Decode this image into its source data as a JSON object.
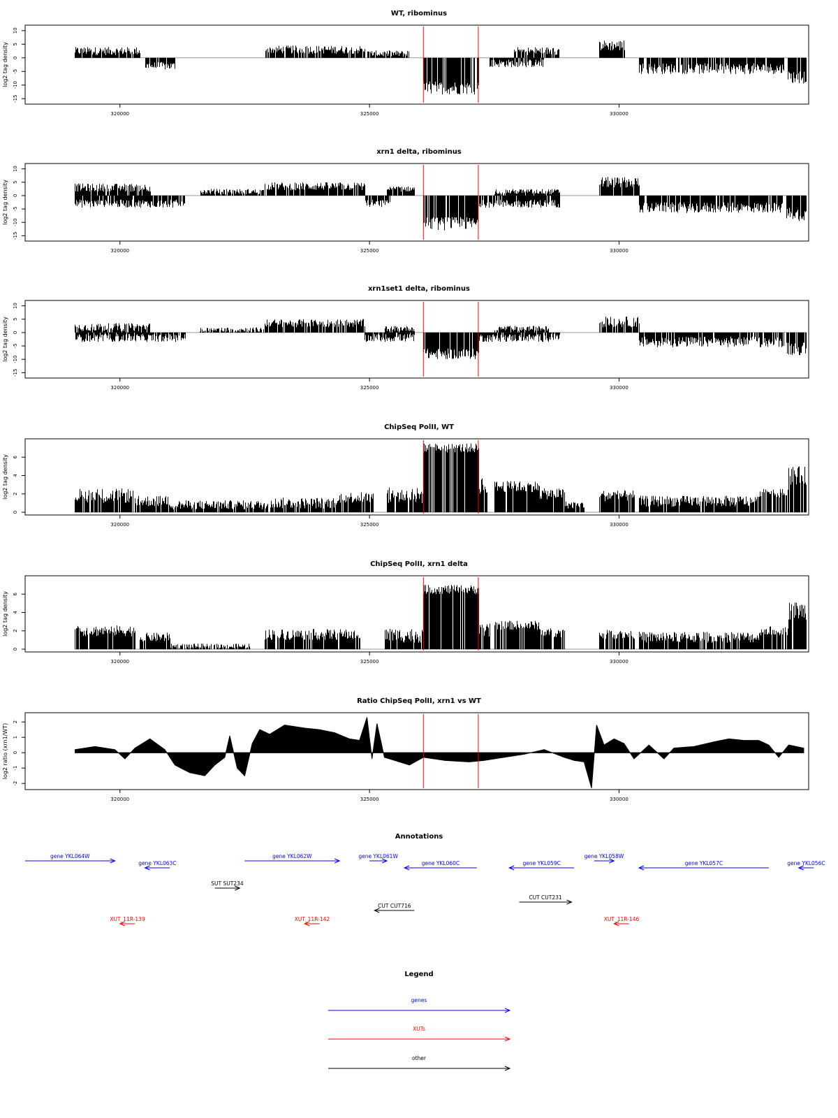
{
  "chart_data": [
    {
      "type": "bar",
      "title": "WT, ribominus",
      "ylabel": "log2 tag density",
      "xlim": [
        318100,
        333800
      ],
      "ylim": [
        -17,
        12
      ],
      "yticks": [
        10,
        5,
        0,
        -5,
        -10,
        -15
      ],
      "xticks": [
        320000,
        325000,
        330000
      ],
      "markers": [
        326080,
        327180
      ],
      "segments": [
        {
          "x0": 319100,
          "x1": 320400,
          "y": 2.5,
          "amp": 1.5
        },
        {
          "x0": 320500,
          "x1": 321100,
          "y": -3.0,
          "amp": 1.5
        },
        {
          "x0": 322900,
          "x1": 324900,
          "y": 3.0,
          "amp": 1.5
        },
        {
          "x0": 324950,
          "x1": 325800,
          "y": 1.5,
          "amp": 1.2
        },
        {
          "x0": 326080,
          "x1": 327180,
          "y": -11.0,
          "amp": 2.5
        },
        {
          "x0": 327400,
          "x1": 328500,
          "y": -2.0,
          "amp": 1.5
        },
        {
          "x0": 327900,
          "x1": 328800,
          "y": 2.5,
          "amp": 1.5
        },
        {
          "x0": 329600,
          "x1": 330100,
          "y": 4.5,
          "amp": 2.0
        },
        {
          "x0": 330400,
          "x1": 333300,
          "y": -4.0,
          "amp": 2.0
        },
        {
          "x0": 333350,
          "x1": 333750,
          "y": -7.0,
          "amp": 2.5
        }
      ]
    },
    {
      "type": "bar",
      "title": "xrn1 delta, ribominus",
      "ylabel": "log2 tag density",
      "xlim": [
        318100,
        333800
      ],
      "ylim": [
        -17,
        12
      ],
      "yticks": [
        10,
        5,
        0,
        -5,
        -10,
        -15
      ],
      "xticks": [
        320000,
        325000,
        330000
      ],
      "markers": [
        326080,
        327180
      ],
      "segments": [
        {
          "x0": 319100,
          "x1": 320600,
          "y": 3.0,
          "amp": 1.5
        },
        {
          "x0": 319100,
          "x1": 321300,
          "y": -3.0,
          "amp": 1.5
        },
        {
          "x0": 321600,
          "x1": 322900,
          "y": 1.5,
          "amp": 1.0
        },
        {
          "x0": 322900,
          "x1": 324900,
          "y": 3.5,
          "amp": 1.5
        },
        {
          "x0": 324900,
          "x1": 325400,
          "y": -3.0,
          "amp": 1.5
        },
        {
          "x0": 325350,
          "x1": 325900,
          "y": 2.5,
          "amp": 1.0
        },
        {
          "x0": 326080,
          "x1": 327180,
          "y": -10.5,
          "amp": 2.5
        },
        {
          "x0": 327180,
          "x1": 328800,
          "y": -3.0,
          "amp": 1.5
        },
        {
          "x0": 327500,
          "x1": 328800,
          "y": 1.5,
          "amp": 1.0
        },
        {
          "x0": 329600,
          "x1": 330400,
          "y": 5.0,
          "amp": 2.0
        },
        {
          "x0": 330400,
          "x1": 333300,
          "y": -4.5,
          "amp": 2.0
        },
        {
          "x0": 333350,
          "x1": 333750,
          "y": -7.0,
          "amp": 2.5
        }
      ]
    },
    {
      "type": "bar",
      "title": "xrn1set1 delta, ribominus",
      "ylabel": "log2 tag density",
      "xlim": [
        318100,
        333800
      ],
      "ylim": [
        -17,
        12
      ],
      "yticks": [
        10,
        5,
        0,
        -5,
        -10,
        -15
      ],
      "xticks": [
        320000,
        325000,
        330000
      ],
      "markers": [
        326080,
        327180
      ],
      "segments": [
        {
          "x0": 319100,
          "x1": 320600,
          "y": 2.0,
          "amp": 1.5
        },
        {
          "x0": 319100,
          "x1": 321300,
          "y": -2.0,
          "amp": 1.5
        },
        {
          "x0": 321600,
          "x1": 322900,
          "y": 1.0,
          "amp": 1.0
        },
        {
          "x0": 322900,
          "x1": 324900,
          "y": 3.5,
          "amp": 1.5
        },
        {
          "x0": 324900,
          "x1": 325900,
          "y": -2.0,
          "amp": 1.5
        },
        {
          "x0": 325300,
          "x1": 325900,
          "y": 1.5,
          "amp": 1.0
        },
        {
          "x0": 326080,
          "x1": 327180,
          "y": -8.0,
          "amp": 2.0
        },
        {
          "x0": 327200,
          "x1": 328800,
          "y": -2.0,
          "amp": 1.5
        },
        {
          "x0": 327500,
          "x1": 328600,
          "y": 1.5,
          "amp": 1.0
        },
        {
          "x0": 329600,
          "x1": 330400,
          "y": 4.0,
          "amp": 2.0
        },
        {
          "x0": 330400,
          "x1": 333300,
          "y": -3.5,
          "amp": 2.0
        },
        {
          "x0": 333350,
          "x1": 333750,
          "y": -6.0,
          "amp": 2.5
        }
      ]
    },
    {
      "type": "bar",
      "title": "ChipSeq PolII, WT",
      "ylabel": "log2 tag density",
      "xlim": [
        318100,
        333800
      ],
      "ylim": [
        -0.3,
        8
      ],
      "yticks": [
        0,
        2,
        4,
        6
      ],
      "xticks": [
        320000,
        325000,
        330000
      ],
      "markers": [
        326080,
        327180
      ],
      "segments": [
        {
          "x0": 319100,
          "x1": 320250,
          "y": 1.8,
          "amp": 0.8
        },
        {
          "x0": 320300,
          "x1": 321000,
          "y": 1.2,
          "amp": 0.6
        },
        {
          "x0": 321000,
          "x1": 323000,
          "y": 0.8,
          "amp": 0.5
        },
        {
          "x0": 323000,
          "x1": 324400,
          "y": 1.0,
          "amp": 0.6
        },
        {
          "x0": 324400,
          "x1": 325100,
          "y": 1.6,
          "amp": 0.6
        },
        {
          "x0": 325350,
          "x1": 326080,
          "y": 1.8,
          "amp": 0.9
        },
        {
          "x0": 326080,
          "x1": 327180,
          "y": 7.0,
          "amp": 0.5
        },
        {
          "x0": 327180,
          "x1": 327350,
          "y": 3.0,
          "amp": 1.0
        },
        {
          "x0": 327500,
          "x1": 328400,
          "y": 2.8,
          "amp": 0.6
        },
        {
          "x0": 328400,
          "x1": 328900,
          "y": 2.0,
          "amp": 0.6
        },
        {
          "x0": 328900,
          "x1": 329300,
          "y": 0.8,
          "amp": 0.4
        },
        {
          "x0": 329600,
          "x1": 330300,
          "y": 1.8,
          "amp": 0.6
        },
        {
          "x0": 330400,
          "x1": 332800,
          "y": 1.2,
          "amp": 0.6
        },
        {
          "x0": 332800,
          "x1": 333400,
          "y": 2.2,
          "amp": 0.6
        },
        {
          "x0": 333400,
          "x1": 333750,
          "y": 4.0,
          "amp": 1.0
        }
      ]
    },
    {
      "type": "bar",
      "title": "ChipSeq PolII, xrn1 delta",
      "ylabel": "log2 tag density",
      "xlim": [
        318100,
        333800
      ],
      "ylim": [
        -0.3,
        8
      ],
      "yticks": [
        0,
        2,
        4,
        6
      ],
      "xticks": [
        320000,
        325000,
        330000
      ],
      "markers": [
        326080,
        327180
      ],
      "segments": [
        {
          "x0": 319100,
          "x1": 320300,
          "y": 2.0,
          "amp": 0.6
        },
        {
          "x0": 320400,
          "x1": 321000,
          "y": 1.3,
          "amp": 0.5
        },
        {
          "x0": 321000,
          "x1": 322600,
          "y": 0.3,
          "amp": 0.3
        },
        {
          "x0": 322900,
          "x1": 324800,
          "y": 1.6,
          "amp": 0.6
        },
        {
          "x0": 325300,
          "x1": 326080,
          "y": 1.5,
          "amp": 0.8
        },
        {
          "x0": 326080,
          "x1": 327180,
          "y": 6.5,
          "amp": 0.5
        },
        {
          "x0": 327180,
          "x1": 327400,
          "y": 2.0,
          "amp": 0.8
        },
        {
          "x0": 327500,
          "x1": 328400,
          "y": 2.6,
          "amp": 0.5
        },
        {
          "x0": 328400,
          "x1": 328900,
          "y": 1.8,
          "amp": 0.5
        },
        {
          "x0": 329600,
          "x1": 330300,
          "y": 1.6,
          "amp": 0.5
        },
        {
          "x0": 330400,
          "x1": 332800,
          "y": 1.3,
          "amp": 0.6
        },
        {
          "x0": 332800,
          "x1": 333400,
          "y": 2.0,
          "amp": 0.5
        },
        {
          "x0": 333400,
          "x1": 333750,
          "y": 4.2,
          "amp": 1.0
        }
      ]
    },
    {
      "type": "area",
      "title": "Ratio ChipSeq PolII, xrn1 vs WT",
      "ylabel": "log2 ratio (xrn1/WT)",
      "xlim": [
        318100,
        333800
      ],
      "ylim": [
        -2.4,
        2.6
      ],
      "yticks": [
        2,
        1,
        0,
        -1,
        -2
      ],
      "xticks": [
        320000,
        325000,
        330000
      ],
      "markers": [
        326080,
        327180
      ],
      "points": [
        [
          319100,
          0.2
        ],
        [
          319500,
          0.4
        ],
        [
          319900,
          0.2
        ],
        [
          320100,
          -0.4
        ],
        [
          320300,
          0.3
        ],
        [
          320600,
          0.9
        ],
        [
          320900,
          0.2
        ],
        [
          321100,
          -0.8
        ],
        [
          321400,
          -1.3
        ],
        [
          321700,
          -1.5
        ],
        [
          321900,
          -0.8
        ],
        [
          322100,
          -0.3
        ],
        [
          322200,
          1.1
        ],
        [
          322350,
          -1.0
        ],
        [
          322500,
          -1.5
        ],
        [
          322650,
          0.6
        ],
        [
          322800,
          1.5
        ],
        [
          323000,
          1.2
        ],
        [
          323300,
          1.8
        ],
        [
          323700,
          1.6
        ],
        [
          324000,
          1.5
        ],
        [
          324300,
          1.3
        ],
        [
          324600,
          0.9
        ],
        [
          324800,
          0.8
        ],
        [
          324950,
          2.3
        ],
        [
          325050,
          -0.4
        ],
        [
          325150,
          1.9
        ],
        [
          325300,
          -0.3
        ],
        [
          325500,
          -0.5
        ],
        [
          325800,
          -0.8
        ],
        [
          326080,
          -0.3
        ],
        [
          326500,
          -0.5
        ],
        [
          327000,
          -0.6
        ],
        [
          327300,
          -0.5
        ],
        [
          327700,
          -0.3
        ],
        [
          328100,
          -0.1
        ],
        [
          328500,
          0.2
        ],
        [
          328900,
          -0.3
        ],
        [
          329100,
          -0.5
        ],
        [
          329300,
          -0.6
        ],
        [
          329450,
          -2.3
        ],
        [
          329550,
          1.8
        ],
        [
          329700,
          0.5
        ],
        [
          329900,
          0.9
        ],
        [
          330100,
          0.6
        ],
        [
          330300,
          -0.4
        ],
        [
          330600,
          0.5
        ],
        [
          330900,
          -0.4
        ],
        [
          331100,
          0.3
        ],
        [
          331500,
          0.4
        ],
        [
          331900,
          0.7
        ],
        [
          332200,
          0.9
        ],
        [
          332500,
          0.8
        ],
        [
          332800,
          0.8
        ],
        [
          333000,
          0.5
        ],
        [
          333200,
          -0.3
        ],
        [
          333400,
          0.5
        ],
        [
          333700,
          0.3
        ]
      ]
    }
  ],
  "annotations": {
    "title": "Annotations",
    "xlim": [
      318100,
      333800
    ],
    "items": [
      {
        "label": "gene YKL064W",
        "kind": "gene",
        "x0": 318100,
        "x1": 319900,
        "row": 1,
        "dir": "right"
      },
      {
        "label": "gene YKL063C",
        "kind": "gene",
        "x0": 320500,
        "x1": 321000,
        "row": 2,
        "dir": "left"
      },
      {
        "label": "gene YKL062W",
        "kind": "gene",
        "x0": 322500,
        "x1": 324400,
        "row": 1,
        "dir": "right"
      },
      {
        "label": "gene YKL061W",
        "kind": "gene",
        "x0": 325000,
        "x1": 325350,
        "row": 1,
        "dir": "right"
      },
      {
        "label": "gene YKL060C",
        "kind": "gene",
        "x0": 325700,
        "x1": 327150,
        "row": 2,
        "dir": "left"
      },
      {
        "label": "gene YKL059C",
        "kind": "gene",
        "x0": 327800,
        "x1": 329100,
        "row": 2,
        "dir": "left"
      },
      {
        "label": "gene YKL058W",
        "kind": "gene",
        "x0": 329500,
        "x1": 329900,
        "row": 1,
        "dir": "right"
      },
      {
        "label": "gene YKL057C",
        "kind": "gene",
        "x0": 330400,
        "x1": 333000,
        "row": 2,
        "dir": "left"
      },
      {
        "label": "gene YKL056C",
        "kind": "gene",
        "x0": 333600,
        "x1": 333900,
        "row": 2,
        "dir": "left"
      },
      {
        "label": "SUT SUT234",
        "kind": "other",
        "x0": 321900,
        "x1": 322400,
        "row": 3,
        "dir": "right"
      },
      {
        "label": "CUT CUT231",
        "kind": "other",
        "x0": 328000,
        "x1": 329050,
        "row": 4,
        "dir": "right"
      },
      {
        "label": "CUT CUT716",
        "kind": "other",
        "x0": 325100,
        "x1": 325900,
        "row": 5,
        "dir": "left"
      },
      {
        "label": "XUT_11R-139",
        "kind": "xut",
        "x0": 320000,
        "x1": 320300,
        "row": 6,
        "dir": "left"
      },
      {
        "label": "XUT_11R-142",
        "kind": "xut",
        "x0": 323700,
        "x1": 324000,
        "row": 6,
        "dir": "left"
      },
      {
        "label": "XUT_11R-146",
        "kind": "xut",
        "x0": 329900,
        "x1": 330200,
        "row": 6,
        "dir": "left"
      }
    ]
  },
  "legend": {
    "title": "Legend",
    "entries": [
      {
        "label": "genes",
        "color": "#0000ff"
      },
      {
        "label": "XUTs",
        "color": "#ff0000"
      },
      {
        "label": "other",
        "color": "#000000"
      }
    ]
  },
  "colors": {
    "bars": "#000000",
    "marker": "#ff0000",
    "gene": "#0000ff",
    "xut": "#ff0000",
    "other": "#000000"
  }
}
